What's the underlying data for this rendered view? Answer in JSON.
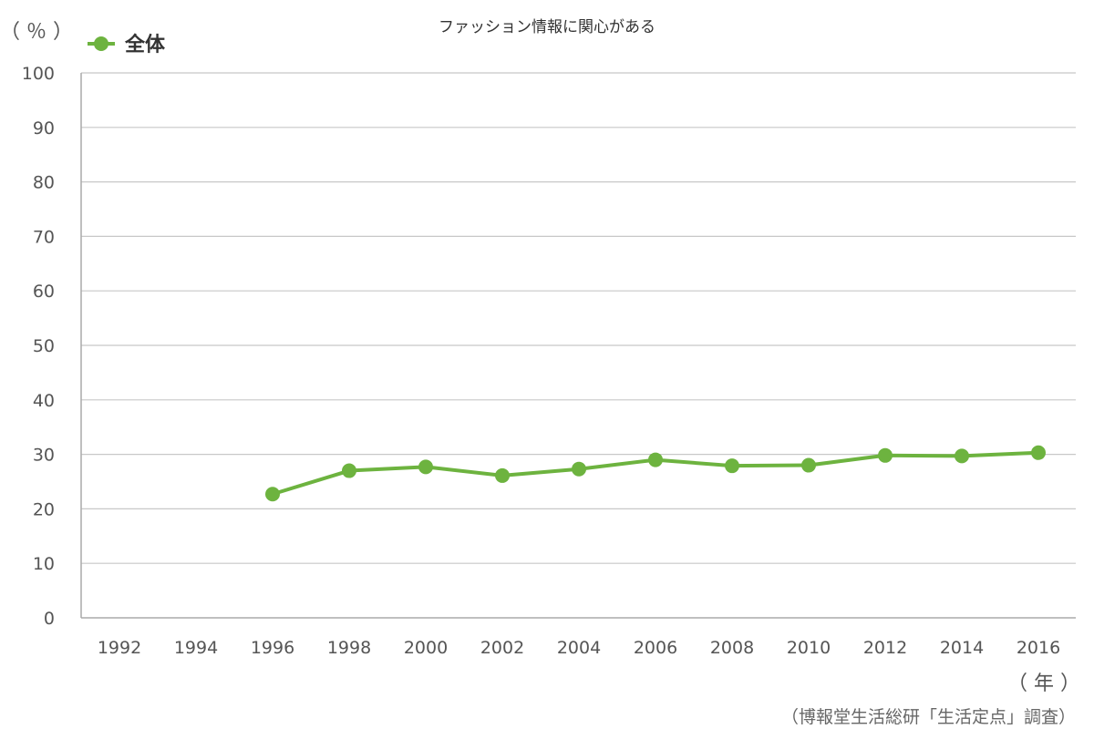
{
  "chart_data": {
    "type": "line",
    "title": "ファッション情報に関心がある",
    "ylabel": "（ ％ ）",
    "xlabel": "（ 年 ）",
    "source": "（博報堂生活総研「生活定点」調査）",
    "categories": [
      "1992",
      "1994",
      "1996",
      "1998",
      "2000",
      "2002",
      "2004",
      "2006",
      "2008",
      "2010",
      "2012",
      "2014",
      "2016"
    ],
    "ylim": [
      0,
      100
    ],
    "yticks": [
      0,
      10,
      20,
      30,
      40,
      50,
      60,
      70,
      80,
      90,
      100
    ],
    "grid": true,
    "legend_position": "top-left",
    "series": [
      {
        "name": "全体",
        "color": "#6db33f",
        "values": [
          null,
          null,
          22.7,
          27.0,
          27.7,
          26.1,
          27.3,
          29.0,
          27.9,
          28.0,
          29.8,
          29.7,
          30.3
        ]
      }
    ]
  }
}
